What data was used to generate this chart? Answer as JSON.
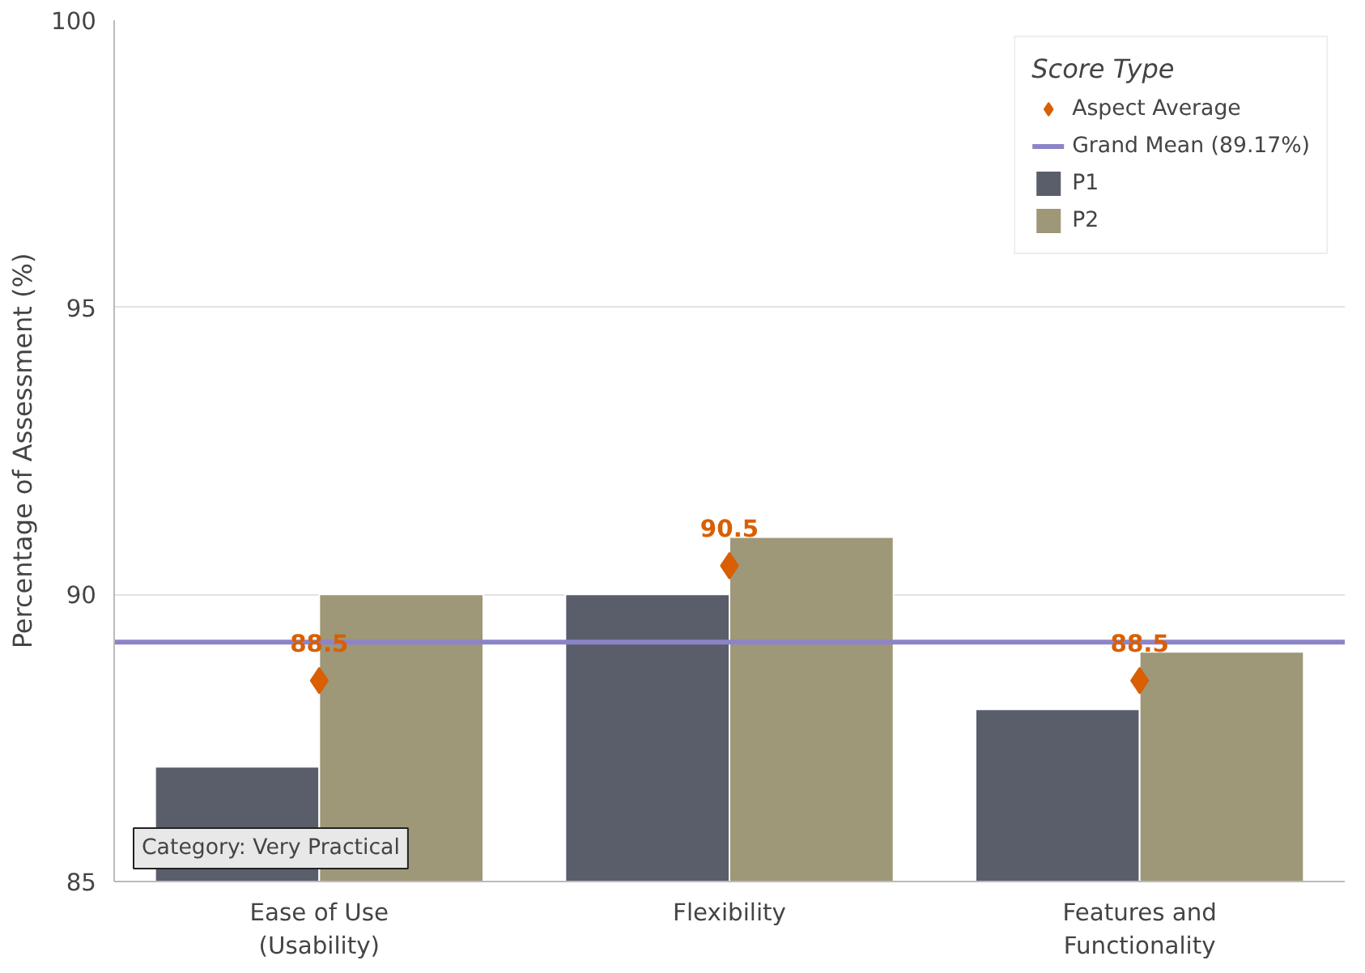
{
  "chart_data": {
    "type": "bar",
    "ylabel": "Percentage of Assessment (%)",
    "categories": [
      "Ease of Use\n(Usability)",
      "Flexibility",
      "Features and\nFunctionality"
    ],
    "ylim": [
      85,
      100
    ],
    "yticks": [
      85,
      90,
      95,
      100
    ],
    "grid": "y",
    "legend": "top right",
    "legend_title": "Score Type",
    "series": [
      {
        "name": "Aspect Average",
        "type": "scatter",
        "marker": "diamond",
        "color": "#d95f02",
        "values": [
          88.5,
          90.5,
          88.5
        ],
        "value_labels": [
          "88.5",
          "90.5",
          "88.5"
        ]
      },
      {
        "name": "P1",
        "color": "#5a5e6b",
        "values": [
          87,
          90,
          88
        ]
      },
      {
        "name": "P2",
        "color": "#9e9778",
        "values": [
          90,
          91,
          89
        ]
      }
    ],
    "ref_lines": [
      {
        "axis": "y",
        "value": 89.17,
        "label": "Grand Mean (89.17%)",
        "color": "#8c84c8"
      }
    ],
    "annotations": [
      "Category: Very Practical"
    ]
  }
}
